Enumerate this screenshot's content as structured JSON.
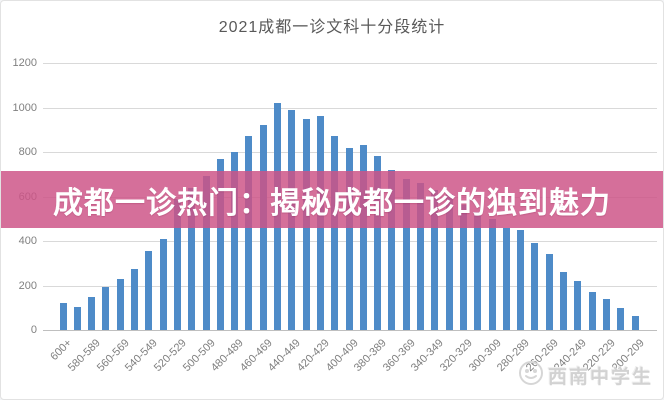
{
  "page": {
    "title": "2021成都一诊文科十分段统计"
  },
  "banner": {
    "text": "成都一诊热门：揭秘成都一诊的独到魅力",
    "background": "#cd5487",
    "text_color": "#ffffff"
  },
  "watermark": {
    "text": "西南中学生",
    "icon": "mascot-logo-icon",
    "color": "#d2d2d2"
  },
  "chart_data": {
    "type": "bar",
    "title": "2021成都一诊文科十分段统计",
    "categories": [
      "600+",
      "590-599",
      "580-589",
      "570-579",
      "560-569",
      "550-559",
      "540-549",
      "530-539",
      "520-529",
      "510-519",
      "500-509",
      "490-499",
      "480-489",
      "470-479",
      "460-469",
      "450-459",
      "440-449",
      "430-439",
      "420-429",
      "410-419",
      "400-409",
      "390-399",
      "380-389",
      "370-379",
      "360-369",
      "350-359",
      "340-349",
      "330-339",
      "320-329",
      "310-319",
      "300-309",
      "290-299",
      "280-289",
      "270-279",
      "260-269",
      "250-259",
      "240-249",
      "230-239",
      "220-229",
      "210-219",
      "200-209"
    ],
    "values": [
      120,
      105,
      150,
      195,
      230,
      275,
      355,
      410,
      590,
      640,
      690,
      770,
      800,
      870,
      920,
      1020,
      990,
      950,
      960,
      870,
      820,
      830,
      780,
      720,
      680,
      660,
      630,
      610,
      560,
      530,
      500,
      460,
      450,
      390,
      340,
      260,
      220,
      170,
      140,
      100,
      65
    ],
    "xlabel": "",
    "ylabel": "",
    "ylim": [
      0,
      1200
    ],
    "y_ticks": [
      0,
      200,
      400,
      600,
      800,
      1000,
      1200
    ],
    "x_tick_interval": 2,
    "bar_color": "#4E8BC8",
    "grid": true,
    "legend": false
  }
}
